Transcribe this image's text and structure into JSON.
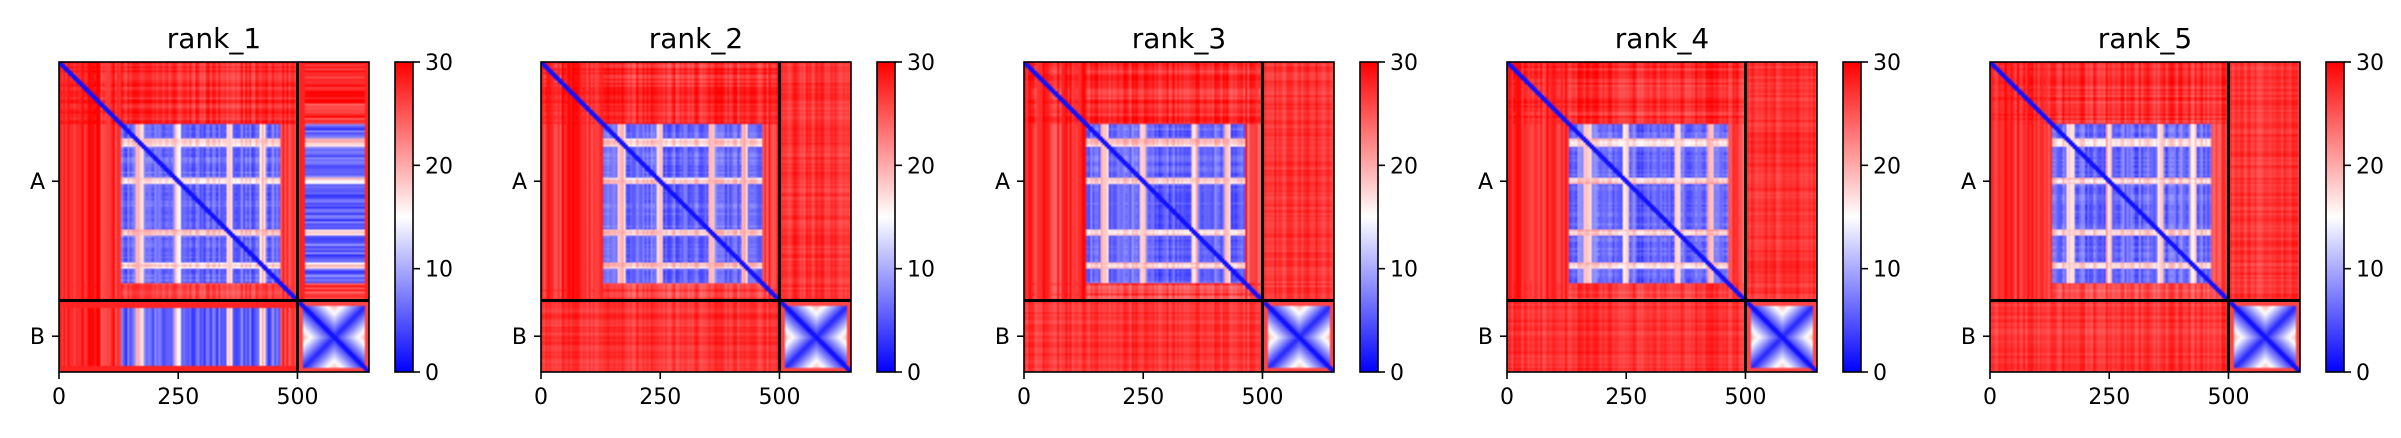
{
  "chart_data": [
    {
      "type": "heatmap",
      "title": "rank_1",
      "x_ticks": [
        0,
        250,
        500
      ],
      "y_ticks": [
        "A",
        "B"
      ],
      "chain_lengths": [
        500,
        150
      ],
      "xlim": [
        0,
        650
      ],
      "colorbar": {
        "min": 0,
        "max": 30,
        "ticks": [
          0,
          10,
          20,
          30
        ]
      },
      "colormap": [
        "#0000ff",
        "#ffffff",
        "#ff0000"
      ],
      "inter_chain": "partial",
      "grid": false
    },
    {
      "type": "heatmap",
      "title": "rank_2",
      "x_ticks": [
        0,
        250,
        500
      ],
      "y_ticks": [
        "A",
        "B"
      ],
      "chain_lengths": [
        500,
        150
      ],
      "xlim": [
        0,
        650
      ],
      "colorbar": {
        "min": 0,
        "max": 30,
        "ticks": [
          0,
          10,
          20,
          30
        ]
      },
      "colormap": [
        "#0000ff",
        "#ffffff",
        "#ff0000"
      ],
      "inter_chain": "high",
      "grid": false
    },
    {
      "type": "heatmap",
      "title": "rank_3",
      "x_ticks": [
        0,
        250,
        500
      ],
      "y_ticks": [
        "A",
        "B"
      ],
      "chain_lengths": [
        500,
        150
      ],
      "xlim": [
        0,
        650
      ],
      "colorbar": {
        "min": 0,
        "max": 30,
        "ticks": [
          0,
          10,
          20,
          30
        ]
      },
      "colormap": [
        "#0000ff",
        "#ffffff",
        "#ff0000"
      ],
      "inter_chain": "high",
      "grid": false
    },
    {
      "type": "heatmap",
      "title": "rank_4",
      "x_ticks": [
        0,
        250,
        500
      ],
      "y_ticks": [
        "A",
        "B"
      ],
      "chain_lengths": [
        500,
        150
      ],
      "xlim": [
        0,
        650
      ],
      "colorbar": {
        "min": 0,
        "max": 30,
        "ticks": [
          0,
          10,
          20,
          30
        ]
      },
      "colormap": [
        "#0000ff",
        "#ffffff",
        "#ff0000"
      ],
      "inter_chain": "high",
      "grid": false
    },
    {
      "type": "heatmap",
      "title": "rank_5",
      "x_ticks": [
        0,
        250,
        500
      ],
      "y_ticks": [
        "A",
        "B"
      ],
      "chain_lengths": [
        500,
        150
      ],
      "xlim": [
        0,
        650
      ],
      "colorbar": {
        "min": 0,
        "max": 30,
        "ticks": [
          0,
          10,
          20,
          30
        ]
      },
      "colormap": [
        "#0000ff",
        "#ffffff",
        "#ff0000"
      ],
      "inter_chain": "high",
      "grid": false
    }
  ]
}
